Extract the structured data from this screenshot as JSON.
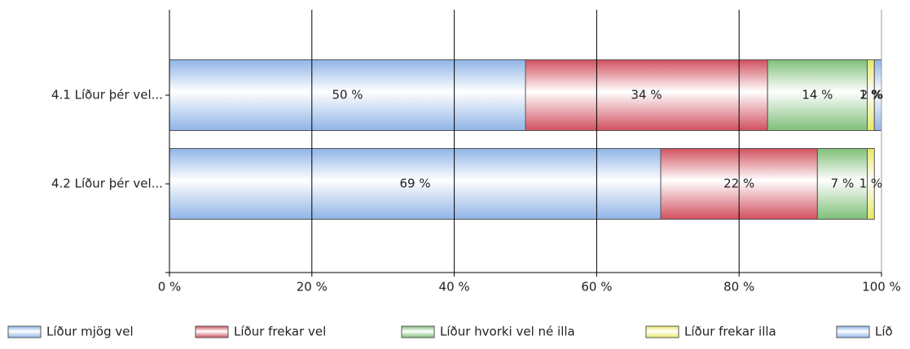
{
  "chart_data": {
    "type": "stacked-bar-horizontal",
    "categories": [
      "4.1 Líður þér vel...",
      "4.2 Líður þér vel..."
    ],
    "series": [
      {
        "name": "Líður mjög vel",
        "color": "#8fb4e6",
        "values": [
          50,
          69
        ],
        "value_labels": [
          "50 %",
          "69 %"
        ]
      },
      {
        "name": "Líður frekar vel",
        "color": "#d2505f",
        "values": [
          34,
          22
        ],
        "value_labels": [
          "34 %",
          "22 %"
        ]
      },
      {
        "name": "Líður hvorki vel né illa",
        "color": "#7fbf78",
        "values": [
          14,
          7
        ],
        "value_labels": [
          "14 %",
          "7 %"
        ]
      },
      {
        "name": "Líður frekar illa",
        "color": "#e8e864",
        "values": [
          1,
          1
        ],
        "value_labels": [
          "1 %",
          "1 %"
        ]
      },
      {
        "name": "Líð",
        "color": "#8fb4e6",
        "values": [
          2,
          null
        ],
        "value_labels": [
          "2 %",
          null
        ]
      }
    ],
    "xlim": [
      0,
      100
    ],
    "xticks": [
      {
        "value": 0,
        "label": "0 %"
      },
      {
        "value": 20,
        "label": "20 %"
      },
      {
        "value": 40,
        "label": "40 %"
      },
      {
        "value": 60,
        "label": "60 %"
      },
      {
        "value": 80,
        "label": "80 %"
      },
      {
        "value": 100,
        "label": "100 %"
      }
    ],
    "grid": true,
    "legend": "bottom"
  }
}
